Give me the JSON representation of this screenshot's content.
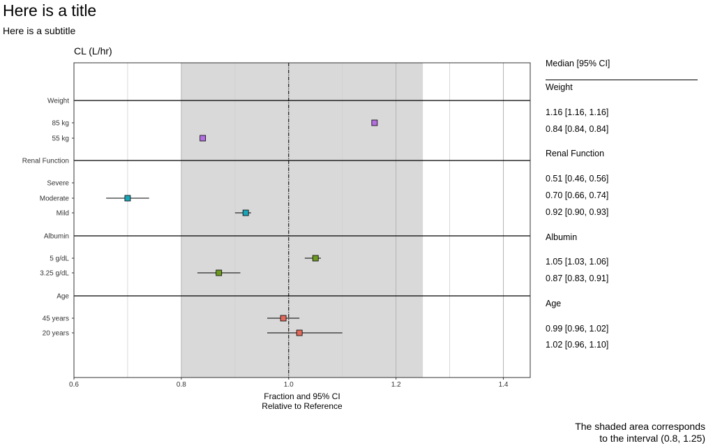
{
  "title": "Here is a title",
  "subtitle": "Here is a subtitle",
  "panel_title": "CL (L/hr)",
  "xlabel_line1": "Fraction and 95% CI",
  "xlabel_line2": "Relative to Reference",
  "table_header": "Median [95% CI]",
  "footnote_line1": "The shaded area corresponds",
  "footnote_line2": "to the interval (0.8, 1.25)",
  "chart_data": {
    "type": "scatter",
    "xlim": [
      0.6,
      1.45
    ],
    "x_ticks": [
      "0.6",
      "0.8",
      "1.0",
      "1.2",
      "1.4"
    ],
    "x_tick_values": [
      0.6,
      0.8,
      1.0,
      1.2,
      1.4
    ],
    "reference_line": 1.0,
    "shaded_interval": [
      0.8,
      1.25
    ],
    "grid": true,
    "groups": [
      {
        "name": "Weight",
        "color": "#b36ee0",
        "levels": [
          {
            "label": "85 kg",
            "median": 1.16,
            "lower": 1.16,
            "upper": 1.16,
            "text": "1.16 [1.16, 1.16]"
          },
          {
            "label": "55 kg",
            "median": 0.84,
            "lower": 0.84,
            "upper": 0.84,
            "text": "0.84 [0.84, 0.84]"
          }
        ]
      },
      {
        "name": "Renal Function",
        "color": "#1ba6b8",
        "levels": [
          {
            "label": "Severe",
            "median": 0.51,
            "lower": 0.46,
            "upper": 0.56,
            "text": "0.51 [0.46, 0.56]"
          },
          {
            "label": "Moderate",
            "median": 0.7,
            "lower": 0.66,
            "upper": 0.74,
            "text": "0.70 [0.66, 0.74]"
          },
          {
            "label": "Mild",
            "median": 0.92,
            "lower": 0.9,
            "upper": 0.93,
            "text": "0.92 [0.90, 0.93]"
          }
        ]
      },
      {
        "name": "Albumin",
        "color": "#6d9a1f",
        "levels": [
          {
            "label": "5 g/dL",
            "median": 1.05,
            "lower": 1.03,
            "upper": 1.06,
            "text": "1.05 [1.03, 1.06]"
          },
          {
            "label": "3.25 g/dL",
            "median": 0.87,
            "lower": 0.83,
            "upper": 0.91,
            "text": "0.87 [0.83, 0.91]"
          }
        ]
      },
      {
        "name": "Age",
        "color": "#e06a5c",
        "levels": [
          {
            "label": "45 years",
            "median": 0.99,
            "lower": 0.96,
            "upper": 1.02,
            "text": "0.99 [0.96, 1.02]"
          },
          {
            "label": "20 years",
            "median": 1.02,
            "lower": 0.96,
            "upper": 1.1,
            "text": "1.02 [0.96, 1.10]"
          }
        ]
      }
    ]
  }
}
